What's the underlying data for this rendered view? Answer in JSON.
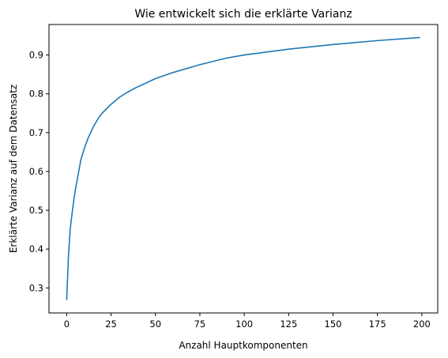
{
  "chart_data": {
    "type": "line",
    "title": "Wie entwickelt sich die erklärte Varianz",
    "xlabel": "Anzahl Hauptkomponenten",
    "ylabel": "Erklärte Varianz auf dem Datensatz",
    "xlim": [
      -9.95,
      208.95
    ],
    "ylim": [
      0.2355,
      0.9785
    ],
    "xticks": [
      0,
      25,
      50,
      75,
      100,
      125,
      150,
      175,
      200
    ],
    "yticks": [
      0.3,
      0.4,
      0.5,
      0.6,
      0.7,
      0.8,
      0.9
    ],
    "grid": false,
    "series": [
      {
        "color": "#1f77b4",
        "x": [
          0,
          1,
          2,
          3,
          4,
          5,
          6,
          7,
          8,
          10,
          12,
          15,
          18,
          20,
          25,
          30,
          35,
          40,
          50,
          60,
          75,
          90,
          100,
          125,
          150,
          175,
          199
        ],
        "y": [
          0.269,
          0.38,
          0.452,
          0.49,
          0.525,
          0.555,
          0.58,
          0.605,
          0.63,
          0.66,
          0.685,
          0.715,
          0.738,
          0.75,
          0.773,
          0.792,
          0.806,
          0.818,
          0.839,
          0.855,
          0.875,
          0.892,
          0.9,
          0.915,
          0.927,
          0.937,
          0.945
        ]
      }
    ]
  }
}
